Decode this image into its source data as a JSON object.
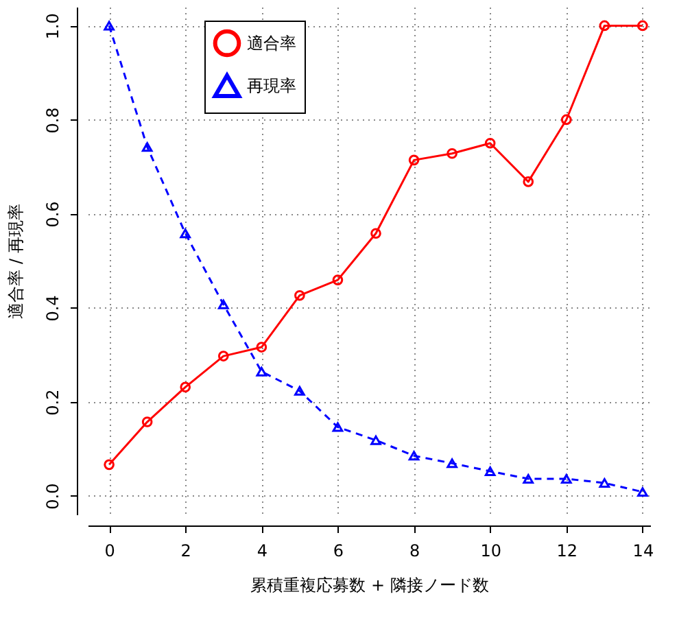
{
  "chart_data": {
    "type": "line",
    "xlabel": "累積重複応募数 + 隣接ノード数",
    "ylabel": "適合率 / 再現率",
    "x": [
      0,
      1,
      2,
      3,
      4,
      5,
      6,
      7,
      8,
      9,
      10,
      11,
      12,
      13,
      14
    ],
    "series": [
      {
        "name": "適合率",
        "color": "#ff0000",
        "marker": "circle",
        "line_style": "solid",
        "values": [
          0.066,
          0.157,
          0.231,
          0.297,
          0.316,
          0.426,
          0.459,
          0.558,
          0.714,
          0.728,
          0.75,
          0.668,
          0.8,
          1.0,
          1.0
        ]
      },
      {
        "name": "再現率",
        "color": "#0000ff",
        "marker": "triangle",
        "line_style": "dashed",
        "values": [
          1.0,
          0.742,
          0.558,
          0.407,
          0.264,
          0.223,
          0.146,
          0.118,
          0.085,
          0.069,
          0.052,
          0.036,
          0.036,
          0.027,
          0.008
        ]
      }
    ],
    "xlim": [
      -0.56,
      14.2
    ],
    "xticks": [
      0,
      2,
      4,
      6,
      8,
      10,
      12,
      14
    ],
    "ylim": [
      -0.04,
      1.04
    ],
    "yticks": [
      {
        "value": 0,
        "label": "0.0"
      },
      {
        "value": 0.2,
        "label": "0.2"
      },
      {
        "value": 0.4,
        "label": "0.4"
      },
      {
        "value": 0.6,
        "label": "0.6"
      },
      {
        "value": 0.8,
        "label": "0.8"
      },
      {
        "value": 1,
        "label": "1.0"
      }
    ],
    "grid": true,
    "legend": "top"
  }
}
